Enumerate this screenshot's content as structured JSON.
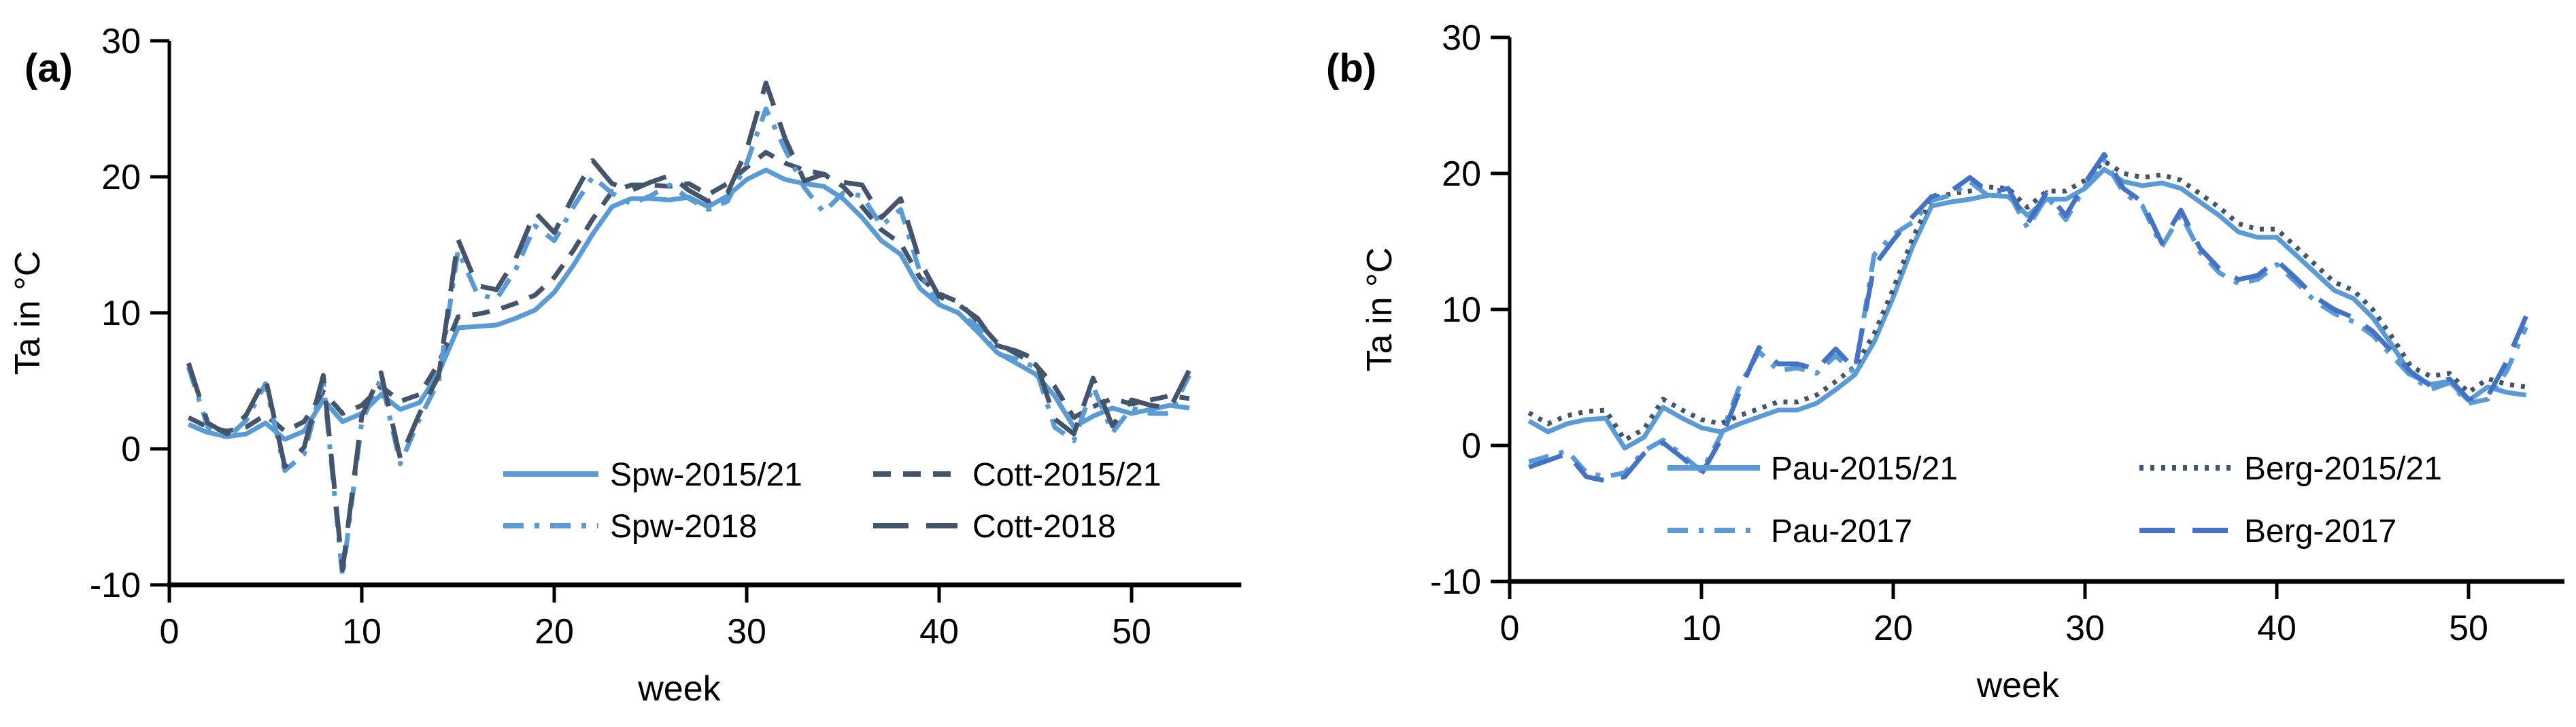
{
  "figure": {
    "background": "#ffffff",
    "description": "Weekly mean air temperature Ta for two station pairs"
  },
  "colors": {
    "spw_pau_blue": "#5B9BD5",
    "cott_berg_slate": "#44546A",
    "berg2017_blue": "#4472C4",
    "axis_black": "#000000"
  },
  "chart_data": [
    {
      "type": "line",
      "panel_label": "(a)",
      "xlabel": "week",
      "ylabel": "Ta in °C",
      "xlim": [
        0,
        55
      ],
      "ylim": [
        -10,
        30
      ],
      "xticks": [
        0,
        10,
        20,
        30,
        40,
        50
      ],
      "yticks": [
        30,
        20,
        10,
        0,
        -10
      ],
      "grid": false,
      "x_range": [
        1,
        53
      ],
      "series": [
        {
          "name": "Spw-2015/21",
          "color": "#5B9BD5",
          "style": "solid",
          "values": [
            1.8,
            1.2,
            0.9,
            1.1,
            1.9,
            0.7,
            1.3,
            3.6,
            2.0,
            2.6,
            4.0,
            2.9,
            3.4,
            5.6,
            8.9,
            9.0,
            9.1,
            9.6,
            10.2,
            11.5,
            13.5,
            15.8,
            17.8,
            18.4,
            18.4,
            18.3,
            18.5,
            17.8,
            18.6,
            19.8,
            20.5,
            19.8,
            19.5,
            19.3,
            18.4,
            17.0,
            15.3,
            14.3,
            11.8,
            10.6,
            10.0,
            8.6,
            7.1,
            6.3,
            5.5,
            3.9,
            1.6,
            2.4,
            3.0,
            2.6,
            2.9,
            3.2,
            3.0
          ]
        },
        {
          "name": "Cott-2015/21",
          "color": "#44546A",
          "style": "dash",
          "values": [
            2.3,
            1.6,
            1.3,
            1.6,
            2.5,
            1.3,
            2.0,
            4.2,
            2.6,
            3.2,
            4.6,
            3.5,
            4.0,
            6.3,
            9.7,
            9.9,
            10.2,
            10.7,
            11.3,
            12.6,
            14.6,
            16.9,
            18.9,
            19.4,
            19.4,
            19.3,
            19.5,
            18.7,
            19.5,
            20.7,
            21.8,
            21.0,
            20.5,
            20.2,
            19.3,
            17.8,
            16.1,
            15.1,
            12.6,
            11.4,
            10.8,
            9.4,
            7.8,
            7.0,
            6.2,
            4.6,
            2.3,
            3.1,
            3.7,
            3.3,
            3.6,
            3.9,
            3.7
          ]
        },
        {
          "name": "Spw-2018",
          "color": "#5B9BD5",
          "style": "dashdot",
          "values": [
            6.0,
            1.6,
            0.8,
            2.1,
            4.8,
            -1.6,
            -0.4,
            5.0,
            -9.4,
            2.0,
            5.2,
            -1.1,
            2.2,
            5.0,
            14.6,
            11.4,
            11.0,
            13.2,
            16.4,
            15.3,
            17.8,
            20.0,
            18.8,
            18.0,
            18.6,
            19.4,
            18.4,
            17.6,
            18.2,
            21.0,
            25.0,
            22.0,
            19.2,
            17.4,
            18.8,
            18.6,
            16.4,
            17.6,
            13.0,
            10.6,
            10.0,
            9.0,
            7.0,
            6.6,
            6.0,
            1.6,
            0.6,
            4.6,
            1.2,
            3.0,
            2.6,
            2.6,
            5.4
          ]
        },
        {
          "name": "Cott-2018",
          "color": "#44546A",
          "style": "longdash",
          "values": [
            6.3,
            1.9,
            1.1,
            2.5,
            5.2,
            -1.3,
            0.1,
            5.4,
            -8.9,
            2.4,
            5.6,
            -0.7,
            2.6,
            5.4,
            15.4,
            12.0,
            11.7,
            14.0,
            17.4,
            15.9,
            18.6,
            21.2,
            19.5,
            19.0,
            19.6,
            20.1,
            19.0,
            18.2,
            18.8,
            22.0,
            26.9,
            22.8,
            19.7,
            20.2,
            19.6,
            19.4,
            17.0,
            18.4,
            13.8,
            11.2,
            10.6,
            9.6,
            7.6,
            7.2,
            6.6,
            2.2,
            1.1,
            5.2,
            1.7,
            3.6,
            3.2,
            3.0,
            5.8
          ]
        }
      ],
      "legend": {
        "position": "inside-bottom-right",
        "rows": [
          [
            "Spw-2015/21",
            "Cott-2015/21"
          ],
          [
            "Spw-2018",
            "Cott-2018"
          ]
        ]
      }
    },
    {
      "type": "line",
      "panel_label": "(b)",
      "xlabel": "week",
      "ylabel": "Ta in °C",
      "xlim": [
        0,
        55
      ],
      "ylim": [
        -10,
        30
      ],
      "xticks": [
        0,
        10,
        20,
        30,
        40,
        50
      ],
      "yticks": [
        30,
        20,
        10,
        0,
        -10
      ],
      "grid": false,
      "x_range": [
        1,
        53
      ],
      "series": [
        {
          "name": "Pau-2015/21",
          "color": "#5B9BD5",
          "style": "solid",
          "values": [
            1.8,
            1.0,
            1.6,
            1.9,
            2.0,
            -0.2,
            0.6,
            2.8,
            2.0,
            1.3,
            1.0,
            1.6,
            2.1,
            2.6,
            2.6,
            3.1,
            4.1,
            5.2,
            7.6,
            10.9,
            14.6,
            17.6,
            17.9,
            18.1,
            18.4,
            18.3,
            16.9,
            18.1,
            18.1,
            18.9,
            20.3,
            19.4,
            19.1,
            19.3,
            18.9,
            17.9,
            16.9,
            15.7,
            15.3,
            15.3,
            14.0,
            12.7,
            11.4,
            10.8,
            9.4,
            7.4,
            5.2,
            4.5,
            4.7,
            3.3,
            4.3,
            3.9,
            3.7
          ]
        },
        {
          "name": "Berg-2015/21",
          "color": "#44546A",
          "style": "dotted",
          "values": [
            2.4,
            1.6,
            2.2,
            2.5,
            2.6,
            0.4,
            1.2,
            3.4,
            2.6,
            1.9,
            1.6,
            2.2,
            2.7,
            3.2,
            3.2,
            3.7,
            4.7,
            5.8,
            8.2,
            11.5,
            15.2,
            18.2,
            18.5,
            18.7,
            19.0,
            18.9,
            17.5,
            18.7,
            18.7,
            19.5,
            20.9,
            20.0,
            19.7,
            19.9,
            19.5,
            18.5,
            17.5,
            16.3,
            15.9,
            15.9,
            14.6,
            13.3,
            12.0,
            11.4,
            10.0,
            8.0,
            5.8,
            5.1,
            5.3,
            3.9,
            4.9,
            4.5,
            4.3
          ]
        },
        {
          "name": "Pau-2017",
          "color": "#5B9BD5",
          "style": "dashdot",
          "values": [
            -1.2,
            -0.8,
            -0.4,
            -2.0,
            -2.3,
            -2.0,
            -0.4,
            0.4,
            -0.7,
            -1.9,
            0.7,
            4.4,
            6.9,
            5.5,
            5.7,
            5.3,
            6.6,
            5.3,
            14.0,
            15.5,
            16.4,
            18.0,
            18.4,
            19.4,
            18.3,
            18.6,
            16.0,
            18.3,
            16.6,
            19.0,
            21.0,
            18.6,
            17.6,
            14.6,
            17.0,
            14.2,
            12.7,
            11.9,
            12.2,
            13.3,
            12.0,
            10.6,
            9.7,
            9.1,
            8.1,
            6.6,
            5.1,
            4.1,
            4.6,
            3.1,
            3.4,
            5.5,
            8.7
          ]
        },
        {
          "name": "Berg-2017",
          "color": "#4472C4",
          "style": "longdash",
          "values": [
            -1.6,
            -1.1,
            -0.6,
            -2.3,
            -2.6,
            -2.3,
            -0.6,
            0.2,
            -0.9,
            -2.1,
            0.4,
            4.0,
            7.2,
            6.0,
            6.0,
            5.6,
            7.1,
            5.6,
            13.2,
            15.1,
            16.8,
            18.3,
            18.7,
            19.7,
            18.6,
            18.9,
            16.3,
            18.6,
            16.9,
            19.3,
            21.4,
            18.9,
            17.9,
            14.9,
            17.3,
            14.5,
            13.0,
            12.2,
            12.5,
            13.6,
            12.3,
            10.9,
            10.0,
            9.4,
            8.4,
            6.9,
            5.4,
            4.4,
            4.9,
            3.4,
            3.6,
            6.2,
            9.5
          ]
        }
      ],
      "legend": {
        "position": "inside-bottom-right",
        "rows": [
          [
            "Pau-2015/21",
            "Berg-2015/21"
          ],
          [
            "Pau-2017",
            "Berg-2017"
          ]
        ]
      }
    }
  ]
}
